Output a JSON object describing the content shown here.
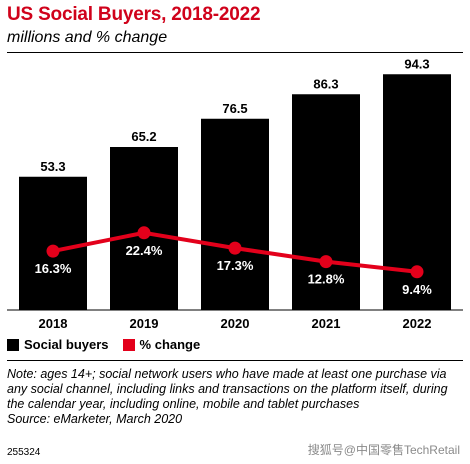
{
  "header": {
    "title": "US Social Buyers, 2018-2022",
    "subtitle": "millions and % change"
  },
  "chart_data": {
    "type": "bar",
    "title": "US Social Buyers, 2018-2022",
    "subtitle": "millions and % change",
    "categories": [
      "2018",
      "2019",
      "2020",
      "2021",
      "2022"
    ],
    "series": [
      {
        "name": "Social buyers",
        "type": "bar",
        "values": [
          53.3,
          65.2,
          76.5,
          86.3,
          94.3
        ],
        "labels": [
          "53.3",
          "65.2",
          "76.5",
          "86.3",
          "94.3"
        ],
        "color": "#000000"
      },
      {
        "name": "% change",
        "type": "line",
        "values": [
          16.3,
          22.4,
          17.3,
          12.8,
          9.4
        ],
        "labels": [
          "16.3%",
          "22.4%",
          "17.3%",
          "12.8%",
          "9.4%"
        ],
        "color": "#e3001b"
      }
    ],
    "ylim": [
      0,
      100
    ],
    "pct_ylim": [
      0,
      60
    ],
    "legend": "bottom-left",
    "grid": false
  },
  "legend": {
    "items": [
      {
        "label": "Social buyers",
        "color": "#000000"
      },
      {
        "label": "% change",
        "color": "#e3001b"
      }
    ]
  },
  "footer": {
    "note": "Note: ages 14+; social network users who have made at least one purchase via any social channel, including links and transactions on the platform itself, during the calendar year, including online, mobile and tablet purchases",
    "source": "Source: eMarketer, March 2020",
    "code": "255324",
    "watermark": "搜狐号@中国零售TechRetail"
  }
}
